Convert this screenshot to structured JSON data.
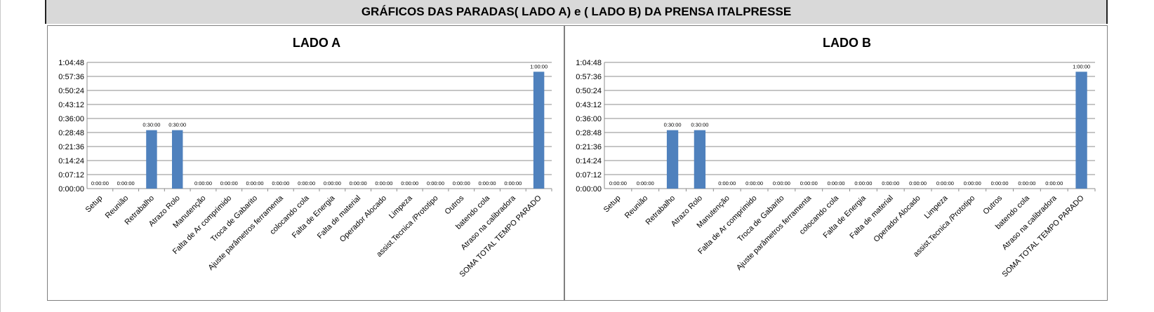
{
  "banner": {
    "title": "GRÁFICOS DAS PARADAS( LADO A) e ( LADO B) DA PRENSA ITALPRESSE"
  },
  "colors": {
    "bar": "#4f81bd",
    "grid": "#8c8c8c",
    "banner_bg": "#d9d9d9"
  },
  "chart_data": [
    {
      "type": "bar",
      "title": "LADO A",
      "categories": [
        "Setup",
        "Reunião",
        "Retrabalho",
        "Atrazo Rolo",
        "Manutenção",
        "Falta de Ar comprimido",
        "Troca de Gabarito",
        "Ajuste parâmetros ferramenta",
        "colocando cola",
        "Falta de Energia",
        "Falta de material",
        "Operador Alocado",
        "Limpeza",
        "assist.Tecnica /Prototipo",
        "Outros",
        "batendo cola",
        "Atraso na calibradora",
        "SOMA TOTAL TEMPO PARADO"
      ],
      "values": [
        "0:00:00",
        "0:00:00",
        "0:30:00",
        "0:30:00",
        "0:00:00",
        "0:00:00",
        "0:00:00",
        "0:00:00",
        "0:00:00",
        "0:00:00",
        "0:00:00",
        "0:00:00",
        "0:00:00",
        "0:00:00",
        "0:00:00",
        "0:00:00",
        "0:00:00",
        "1:00:00"
      ],
      "value_labels": [
        "0:00:00",
        "0:00:00",
        "0:30:00",
        "0:30:00",
        "0:00:00",
        "0:00:00",
        "0:00:00",
        "0:00:00",
        "0:00:00",
        "0:00:00",
        "0:00:00",
        "0:00:00",
        "0:00:00",
        "0:00:00",
        "0:00:00",
        "0:00:00",
        "0:00:00",
        "1:00:00"
      ],
      "y_ticks": [
        "0:00:00",
        "0:07:12",
        "0:14:24",
        "0:21:36",
        "0:28:48",
        "0:36:00",
        "0:43:12",
        "0:50:24",
        "0:57:36",
        "1:04:48"
      ],
      "ylim": [
        "0:00:00",
        "1:04:48"
      ],
      "grid": true,
      "legend": "none"
    },
    {
      "type": "bar",
      "title": "LADO B",
      "categories": [
        "Setup",
        "Reunião",
        "Retrabalho",
        "Atrazo Rolo",
        "Manutenção",
        "Falta de Ar comprimido",
        "Troca de Gabarito",
        "Ajuste parâmetros ferramenta",
        "colocando cola",
        "Falta de Energia",
        "Falta de material",
        "Operador Alocado",
        "Limpeza",
        "assist.Tecnica /Prototipo",
        "Outros",
        "batendo cola",
        "Atraso na calibradora",
        "SOMA TOTAL TEMPO PARADO"
      ],
      "values": [
        "0:00:00",
        "0:00:00",
        "0:30:00",
        "0:30:00",
        "0:00:00",
        "0:00:00",
        "0:00:00",
        "0:00:00",
        "0:00:00",
        "0:00:00",
        "0:00:00",
        "0:00:00",
        "0:00:00",
        "0:00:00",
        "0:00:00",
        "0:00:00",
        "0:00:00",
        "1:00:00"
      ],
      "value_labels": [
        "0:00:00",
        "0:00:00",
        "0:30:00",
        "0:30:00",
        "0:00:00",
        "0:00:00",
        "0:00:00",
        "0:00:00",
        "0:00:00",
        "0:00:00",
        "0:00:00",
        "0:00:00",
        "0:00:00",
        "0:00:00",
        "0:00:00",
        "0:00:00",
        "0:00:00",
        "1:00:00"
      ],
      "y_ticks": [
        "0:00:00",
        "0:07:12",
        "0:14:24",
        "0:21:36",
        "0:28:48",
        "0:36:00",
        "0:43:12",
        "0:50:24",
        "0:57:36",
        "1:04:48"
      ],
      "ylim": [
        "0:00:00",
        "1:04:48"
      ],
      "grid": true,
      "legend": "none"
    }
  ]
}
